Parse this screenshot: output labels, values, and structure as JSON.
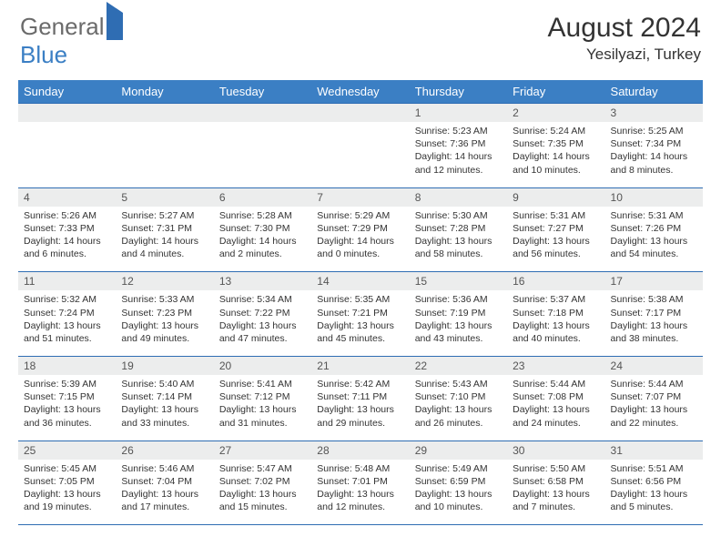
{
  "branding": {
    "logo_word1": "General",
    "logo_word2": "Blue"
  },
  "header": {
    "month_title": "August 2024",
    "location": "Yesilyazi, Turkey"
  },
  "colors": {
    "header_bg": "#3b7fc4",
    "rule": "#2f6db3",
    "daynum_bg": "#eceded",
    "text": "#333333",
    "logo_gray": "#6b6b6b"
  },
  "daysOfWeek": [
    "Sunday",
    "Monday",
    "Tuesday",
    "Wednesday",
    "Thursday",
    "Friday",
    "Saturday"
  ],
  "labels": {
    "sunrise": "Sunrise:",
    "sunset": "Sunset:",
    "daylight": "Daylight:"
  },
  "startOffset": 4,
  "days": [
    {
      "n": 1,
      "sr": "5:23 AM",
      "ss": "7:36 PM",
      "dl": "14 hours and 12 minutes."
    },
    {
      "n": 2,
      "sr": "5:24 AM",
      "ss": "7:35 PM",
      "dl": "14 hours and 10 minutes."
    },
    {
      "n": 3,
      "sr": "5:25 AM",
      "ss": "7:34 PM",
      "dl": "14 hours and 8 minutes."
    },
    {
      "n": 4,
      "sr": "5:26 AM",
      "ss": "7:33 PM",
      "dl": "14 hours and 6 minutes."
    },
    {
      "n": 5,
      "sr": "5:27 AM",
      "ss": "7:31 PM",
      "dl": "14 hours and 4 minutes."
    },
    {
      "n": 6,
      "sr": "5:28 AM",
      "ss": "7:30 PM",
      "dl": "14 hours and 2 minutes."
    },
    {
      "n": 7,
      "sr": "5:29 AM",
      "ss": "7:29 PM",
      "dl": "14 hours and 0 minutes."
    },
    {
      "n": 8,
      "sr": "5:30 AM",
      "ss": "7:28 PM",
      "dl": "13 hours and 58 minutes."
    },
    {
      "n": 9,
      "sr": "5:31 AM",
      "ss": "7:27 PM",
      "dl": "13 hours and 56 minutes."
    },
    {
      "n": 10,
      "sr": "5:31 AM",
      "ss": "7:26 PM",
      "dl": "13 hours and 54 minutes."
    },
    {
      "n": 11,
      "sr": "5:32 AM",
      "ss": "7:24 PM",
      "dl": "13 hours and 51 minutes."
    },
    {
      "n": 12,
      "sr": "5:33 AM",
      "ss": "7:23 PM",
      "dl": "13 hours and 49 minutes."
    },
    {
      "n": 13,
      "sr": "5:34 AM",
      "ss": "7:22 PM",
      "dl": "13 hours and 47 minutes."
    },
    {
      "n": 14,
      "sr": "5:35 AM",
      "ss": "7:21 PM",
      "dl": "13 hours and 45 minutes."
    },
    {
      "n": 15,
      "sr": "5:36 AM",
      "ss": "7:19 PM",
      "dl": "13 hours and 43 minutes."
    },
    {
      "n": 16,
      "sr": "5:37 AM",
      "ss": "7:18 PM",
      "dl": "13 hours and 40 minutes."
    },
    {
      "n": 17,
      "sr": "5:38 AM",
      "ss": "7:17 PM",
      "dl": "13 hours and 38 minutes."
    },
    {
      "n": 18,
      "sr": "5:39 AM",
      "ss": "7:15 PM",
      "dl": "13 hours and 36 minutes."
    },
    {
      "n": 19,
      "sr": "5:40 AM",
      "ss": "7:14 PM",
      "dl": "13 hours and 33 minutes."
    },
    {
      "n": 20,
      "sr": "5:41 AM",
      "ss": "7:12 PM",
      "dl": "13 hours and 31 minutes."
    },
    {
      "n": 21,
      "sr": "5:42 AM",
      "ss": "7:11 PM",
      "dl": "13 hours and 29 minutes."
    },
    {
      "n": 22,
      "sr": "5:43 AM",
      "ss": "7:10 PM",
      "dl": "13 hours and 26 minutes."
    },
    {
      "n": 23,
      "sr": "5:44 AM",
      "ss": "7:08 PM",
      "dl": "13 hours and 24 minutes."
    },
    {
      "n": 24,
      "sr": "5:44 AM",
      "ss": "7:07 PM",
      "dl": "13 hours and 22 minutes."
    },
    {
      "n": 25,
      "sr": "5:45 AM",
      "ss": "7:05 PM",
      "dl": "13 hours and 19 minutes."
    },
    {
      "n": 26,
      "sr": "5:46 AM",
      "ss": "7:04 PM",
      "dl": "13 hours and 17 minutes."
    },
    {
      "n": 27,
      "sr": "5:47 AM",
      "ss": "7:02 PM",
      "dl": "13 hours and 15 minutes."
    },
    {
      "n": 28,
      "sr": "5:48 AM",
      "ss": "7:01 PM",
      "dl": "13 hours and 12 minutes."
    },
    {
      "n": 29,
      "sr": "5:49 AM",
      "ss": "6:59 PM",
      "dl": "13 hours and 10 minutes."
    },
    {
      "n": 30,
      "sr": "5:50 AM",
      "ss": "6:58 PM",
      "dl": "13 hours and 7 minutes."
    },
    {
      "n": 31,
      "sr": "5:51 AM",
      "ss": "6:56 PM",
      "dl": "13 hours and 5 minutes."
    }
  ]
}
